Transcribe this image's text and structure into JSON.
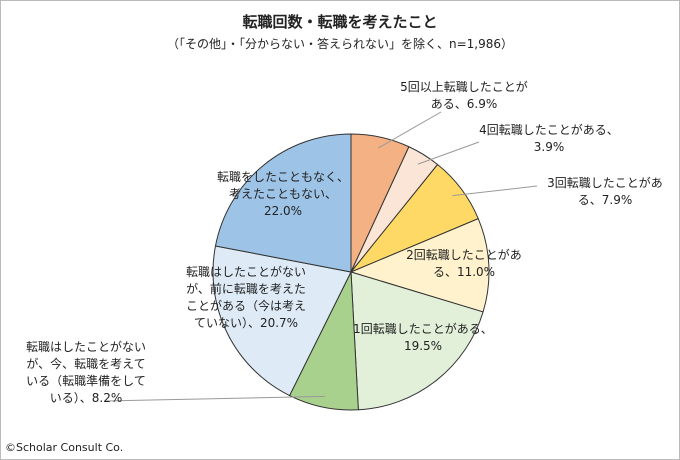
{
  "chart_data": {
    "type": "pie",
    "title": "転職回数・転職を考えたこと",
    "subtitle": "（「その他」・「分からない・答えられない」を除く、n=1,986）",
    "categories": [
      "5回以上転職したことがある",
      "4回転職したことがある",
      "3回転職したことがある",
      "2回転職したことがある",
      "1回転職したことがある",
      "転職はしたことがないが、今、転職を考えている（転職準備をしている）",
      "転職はしたことがないが、前に転職を考えたことがある（今は考えていない）",
      "転職をしたこともなく、考えたこともない"
    ],
    "values": [
      6.9,
      3.9,
      7.9,
      11.0,
      19.5,
      8.2,
      20.7,
      22.0
    ],
    "value_labels": [
      "5回以上転職したことがある、6.9%",
      "4回転職したことがある、3.9%",
      "3回転職したことがある、7.9%",
      "2回転職したことがある、11.0%",
      "1回転職したことがある、19.5%",
      "転職はしたことがないが、今、転職を考えている（転職準備をしている）、8.2%",
      "転職はしたことがないが、前に転職を考えたことがある（今は考えていない）、20.7%",
      "転職をしたこともなく、考えたこともない、22.0%"
    ],
    "colors": [
      "#F4B183",
      "#FBE5D6",
      "#FFD966",
      "#FFF2CC",
      "#E2F0D9",
      "#A9D18E",
      "#DEEBF7",
      "#9DC3E6"
    ],
    "note": "©Scholar Consult Co."
  }
}
